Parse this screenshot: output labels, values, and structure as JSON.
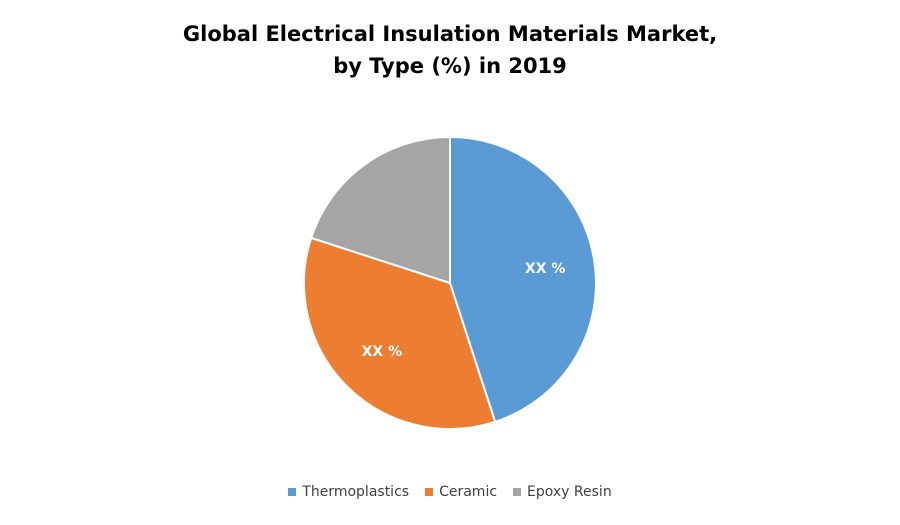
{
  "chart_data": {
    "type": "pie",
    "title_line1": "Global Electrical Insulation Materials Market,",
    "title_line2": "by Type (%) in 2019",
    "categories": [
      "Thermoplastics",
      "Ceramic",
      "Epoxy Resin"
    ],
    "values": [
      45,
      35,
      20
    ],
    "data_labels": [
      "XX %",
      "XX %",
      ""
    ],
    "colors": [
      "#5B9BD5",
      "#ED7D31",
      "#A5A5A5"
    ],
    "legend_position": "bottom"
  }
}
